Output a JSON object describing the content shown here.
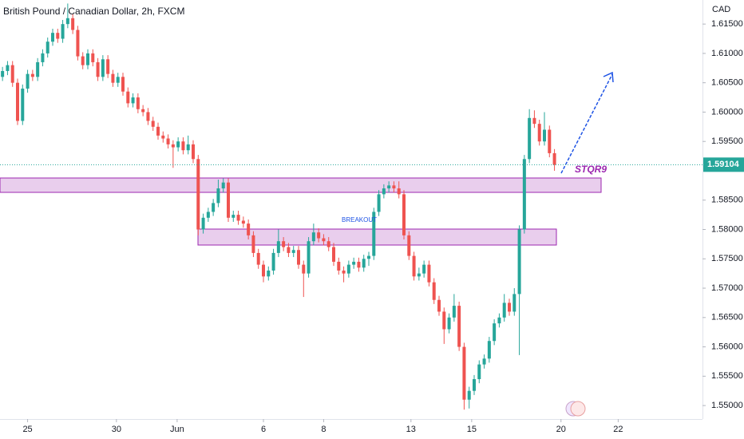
{
  "chart_data": {
    "type": "candlestick",
    "title": "British Pound / Canadian Dollar, 2h, FXCM",
    "currency": "CAD",
    "annotations": [
      "BREAKOUT",
      "STQR9"
    ],
    "up_color": "#26a69a",
    "down_color": "#ef5350",
    "grid": false,
    "xlim": [
      -0.5,
      139.5
    ],
    "ylim": [
      1.5477,
      1.6191
    ],
    "xticks": [
      {
        "value": 5,
        "label": "25"
      },
      {
        "value": 22.7,
        "label": "30"
      },
      {
        "value": 34.8,
        "label": "Jun"
      },
      {
        "value": 52,
        "label": "6"
      },
      {
        "value": 64,
        "label": "8"
      },
      {
        "value": 81.4,
        "label": "13"
      },
      {
        "value": 93.5,
        "label": "15"
      },
      {
        "value": 111.3,
        "label": "20"
      },
      {
        "value": 122.7,
        "label": "22"
      }
    ],
    "yticks": [
      {
        "value": 1.55,
        "label": "1.55000"
      },
      {
        "value": 1.555,
        "label": "1.55500"
      },
      {
        "value": 1.56,
        "label": "1.56000"
      },
      {
        "value": 1.565,
        "label": "1.56500"
      },
      {
        "value": 1.57,
        "label": "1.57000"
      },
      {
        "value": 1.575,
        "label": "1.57500"
      },
      {
        "value": 1.58,
        "label": "1.58000"
      },
      {
        "value": 1.585,
        "label": "1.58500"
      },
      {
        "value": 1.595,
        "label": "1.59500"
      },
      {
        "value": 1.6,
        "label": "1.60000"
      },
      {
        "value": 1.605,
        "label": "1.60500"
      },
      {
        "value": 1.61,
        "label": "1.61000"
      },
      {
        "value": 1.615,
        "label": "1.61500"
      }
    ],
    "last_price": {
      "value": 1.59104,
      "label": "1.59104"
    },
    "open": [
      1.606,
      1.607,
      1.608,
      1.605,
      1.5985,
      1.604,
      1.6065,
      1.606,
      1.6085,
      1.61,
      1.612,
      1.6135,
      1.6125,
      1.615,
      1.616,
      1.614,
      1.6095,
      1.608,
      1.61,
      1.6085,
      1.606,
      1.609,
      1.6065,
      1.605,
      1.606,
      1.6035,
      1.6015,
      1.6025,
      1.6005,
      1.6,
      1.5985,
      1.5975,
      1.596,
      1.5955,
      1.5945,
      1.594,
      1.595,
      1.5935,
      1.5945,
      1.592,
      1.58,
      1.582,
      1.583,
      1.5845,
      1.587,
      1.588,
      1.582,
      1.5825,
      1.5815,
      1.581,
      1.579,
      1.576,
      1.574,
      1.572,
      1.573,
      1.576,
      1.578,
      1.577,
      1.576,
      1.5765,
      1.574,
      1.5725,
      1.578,
      1.5795,
      1.5785,
      1.578,
      1.577,
      1.5745,
      1.573,
      1.5725,
      1.574,
      1.5745,
      1.5735,
      1.575,
      1.5755,
      1.583,
      1.586,
      1.587,
      1.5875,
      1.587,
      1.586,
      1.579,
      1.5755,
      1.572,
      1.5725,
      1.574,
      1.571,
      1.568,
      1.566,
      1.563,
      1.565,
      1.567,
      1.56,
      1.551,
      1.5525,
      1.5545,
      1.557,
      1.558,
      1.561,
      1.564,
      1.565,
      1.5675,
      1.566,
      1.569,
      1.58,
      1.592,
      1.599,
      1.598,
      1.595,
      1.597,
      1.593
    ],
    "high": [
      1.6077,
      1.6087,
      1.6087,
      1.6057,
      1.6047,
      1.6072,
      1.6072,
      1.6092,
      1.6107,
      1.6127,
      1.6142,
      1.6142,
      1.6157,
      1.6185,
      1.6167,
      1.6147,
      1.6102,
      1.6107,
      1.6107,
      1.6092,
      1.6097,
      1.6097,
      1.6072,
      1.6067,
      1.6067,
      1.6042,
      1.6032,
      1.6032,
      1.6012,
      1.6007,
      1.5992,
      1.5982,
      1.5967,
      1.5962,
      1.5952,
      1.5957,
      1.5957,
      1.596,
      1.5952,
      1.5927,
      1.5827,
      1.5837,
      1.5852,
      1.5885,
      1.5887,
      1.5887,
      1.5832,
      1.5832,
      1.5822,
      1.5817,
      1.5797,
      1.5767,
      1.5747,
      1.5737,
      1.5767,
      1.58,
      1.5787,
      1.5777,
      1.5772,
      1.5772,
      1.5747,
      1.5787,
      1.581,
      1.5802,
      1.5792,
      1.5787,
      1.5777,
      1.5752,
      1.5737,
      1.5747,
      1.5752,
      1.5752,
      1.5757,
      1.5762,
      1.5837,
      1.5867,
      1.5877,
      1.5882,
      1.5882,
      1.5882,
      1.5867,
      1.5797,
      1.5762,
      1.5735,
      1.5747,
      1.5747,
      1.5717,
      1.5687,
      1.5667,
      1.5657,
      1.569,
      1.5677,
      1.5607,
      1.5532,
      1.5552,
      1.5577,
      1.5587,
      1.5617,
      1.5647,
      1.5657,
      1.569,
      1.5682,
      1.57,
      1.5807,
      1.5927,
      1.6005,
      1.6003,
      1.5987,
      1.6,
      1.5977,
      1.5937
    ],
    "low": [
      1.6053,
      1.6063,
      1.6043,
      1.5978,
      1.5978,
      1.6033,
      1.6053,
      1.6053,
      1.6078,
      1.6093,
      1.6113,
      1.6118,
      1.6118,
      1.6143,
      1.6133,
      1.6088,
      1.6073,
      1.6073,
      1.6078,
      1.6053,
      1.6053,
      1.6058,
      1.6043,
      1.6043,
      1.6028,
      1.6008,
      1.6008,
      1.5998,
      1.5993,
      1.5978,
      1.5968,
      1.5953,
      1.5948,
      1.5938,
      1.5905,
      1.5933,
      1.5928,
      1.5928,
      1.5913,
      1.579,
      1.5793,
      1.5813,
      1.5823,
      1.5838,
      1.5863,
      1.5813,
      1.5813,
      1.5808,
      1.5803,
      1.5783,
      1.5753,
      1.5733,
      1.571,
      1.5713,
      1.5723,
      1.5753,
      1.5763,
      1.5753,
      1.5753,
      1.5733,
      1.5685,
      1.5718,
      1.5773,
      1.5778,
      1.5773,
      1.5763,
      1.5738,
      1.5723,
      1.571,
      1.5718,
      1.5733,
      1.5728,
      1.5728,
      1.5738,
      1.5748,
      1.5823,
      1.5853,
      1.5863,
      1.5863,
      1.5853,
      1.5783,
      1.5748,
      1.5713,
      1.5713,
      1.5718,
      1.5703,
      1.5673,
      1.5653,
      1.5605,
      1.5623,
      1.5643,
      1.5593,
      1.5493,
      1.5495,
      1.5518,
      1.5538,
      1.5563,
      1.5573,
      1.5603,
      1.5633,
      1.5643,
      1.5653,
      1.5653,
      1.5586,
      1.5793,
      1.5913,
      1.5973,
      1.5943,
      1.5943,
      1.5923,
      1.59
    ],
    "close": [
      1.607,
      1.608,
      1.605,
      1.5985,
      1.604,
      1.6065,
      1.606,
      1.6085,
      1.61,
      1.612,
      1.6135,
      1.6125,
      1.615,
      1.616,
      1.614,
      1.6095,
      1.608,
      1.61,
      1.6085,
      1.606,
      1.609,
      1.6065,
      1.605,
      1.606,
      1.6035,
      1.6015,
      1.6025,
      1.6005,
      1.6,
      1.5985,
      1.5975,
      1.596,
      1.5955,
      1.5945,
      1.594,
      1.595,
      1.5935,
      1.5945,
      1.592,
      1.58,
      1.582,
      1.583,
      1.5845,
      1.587,
      1.588,
      1.582,
      1.5825,
      1.5815,
      1.581,
      1.579,
      1.576,
      1.574,
      1.572,
      1.573,
      1.576,
      1.578,
      1.577,
      1.576,
      1.5765,
      1.574,
      1.5725,
      1.578,
      1.5795,
      1.5785,
      1.578,
      1.577,
      1.5745,
      1.573,
      1.5725,
      1.574,
      1.5745,
      1.5735,
      1.575,
      1.5755,
      1.583,
      1.586,
      1.587,
      1.5875,
      1.587,
      1.586,
      1.579,
      1.5755,
      1.572,
      1.5725,
      1.574,
      1.571,
      1.568,
      1.566,
      1.563,
      1.565,
      1.567,
      1.56,
      1.551,
      1.5525,
      1.5545,
      1.557,
      1.558,
      1.561,
      1.564,
      1.565,
      1.5675,
      1.566,
      1.569,
      1.58,
      1.592,
      1.599,
      1.598,
      1.595,
      1.597,
      1.593,
      1.591
    ]
  }
}
